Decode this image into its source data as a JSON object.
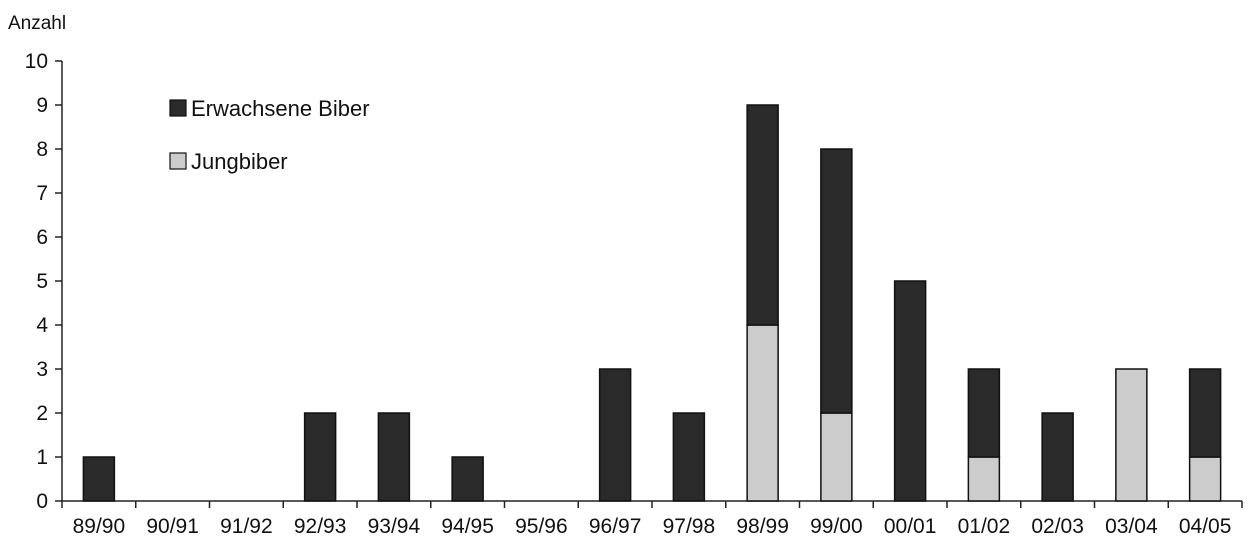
{
  "chart_data": {
    "type": "bar",
    "stacked": true,
    "ylabel": "Anzahl",
    "xlabel": "",
    "title": "",
    "ylim": [
      0,
      10
    ],
    "yticks": [
      0,
      1,
      2,
      3,
      4,
      5,
      6,
      7,
      8,
      9,
      10
    ],
    "grid": false,
    "legend_position": "top-left",
    "categories": [
      "89/90",
      "90/91",
      "91/92",
      "92/93",
      "93/94",
      "94/95",
      "95/96",
      "96/97",
      "97/98",
      "98/99",
      "99/00",
      "00/01",
      "01/02",
      "02/03",
      "03/04",
      "04/05"
    ],
    "series": [
      {
        "name": "Jungbiber",
        "color": "#cccccc",
        "values": [
          0,
          0,
          0,
          0,
          0,
          0,
          0,
          0,
          0,
          4,
          2,
          0,
          1,
          0,
          3,
          1
        ]
      },
      {
        "name": "Erwachsene Biber",
        "color": "#2a2a2a",
        "values": [
          1,
          0,
          0,
          2,
          2,
          1,
          0,
          3,
          2,
          5,
          6,
          5,
          2,
          2,
          0,
          2
        ]
      }
    ],
    "legend_order": [
      "Erwachsene Biber",
      "Jungbiber"
    ]
  }
}
